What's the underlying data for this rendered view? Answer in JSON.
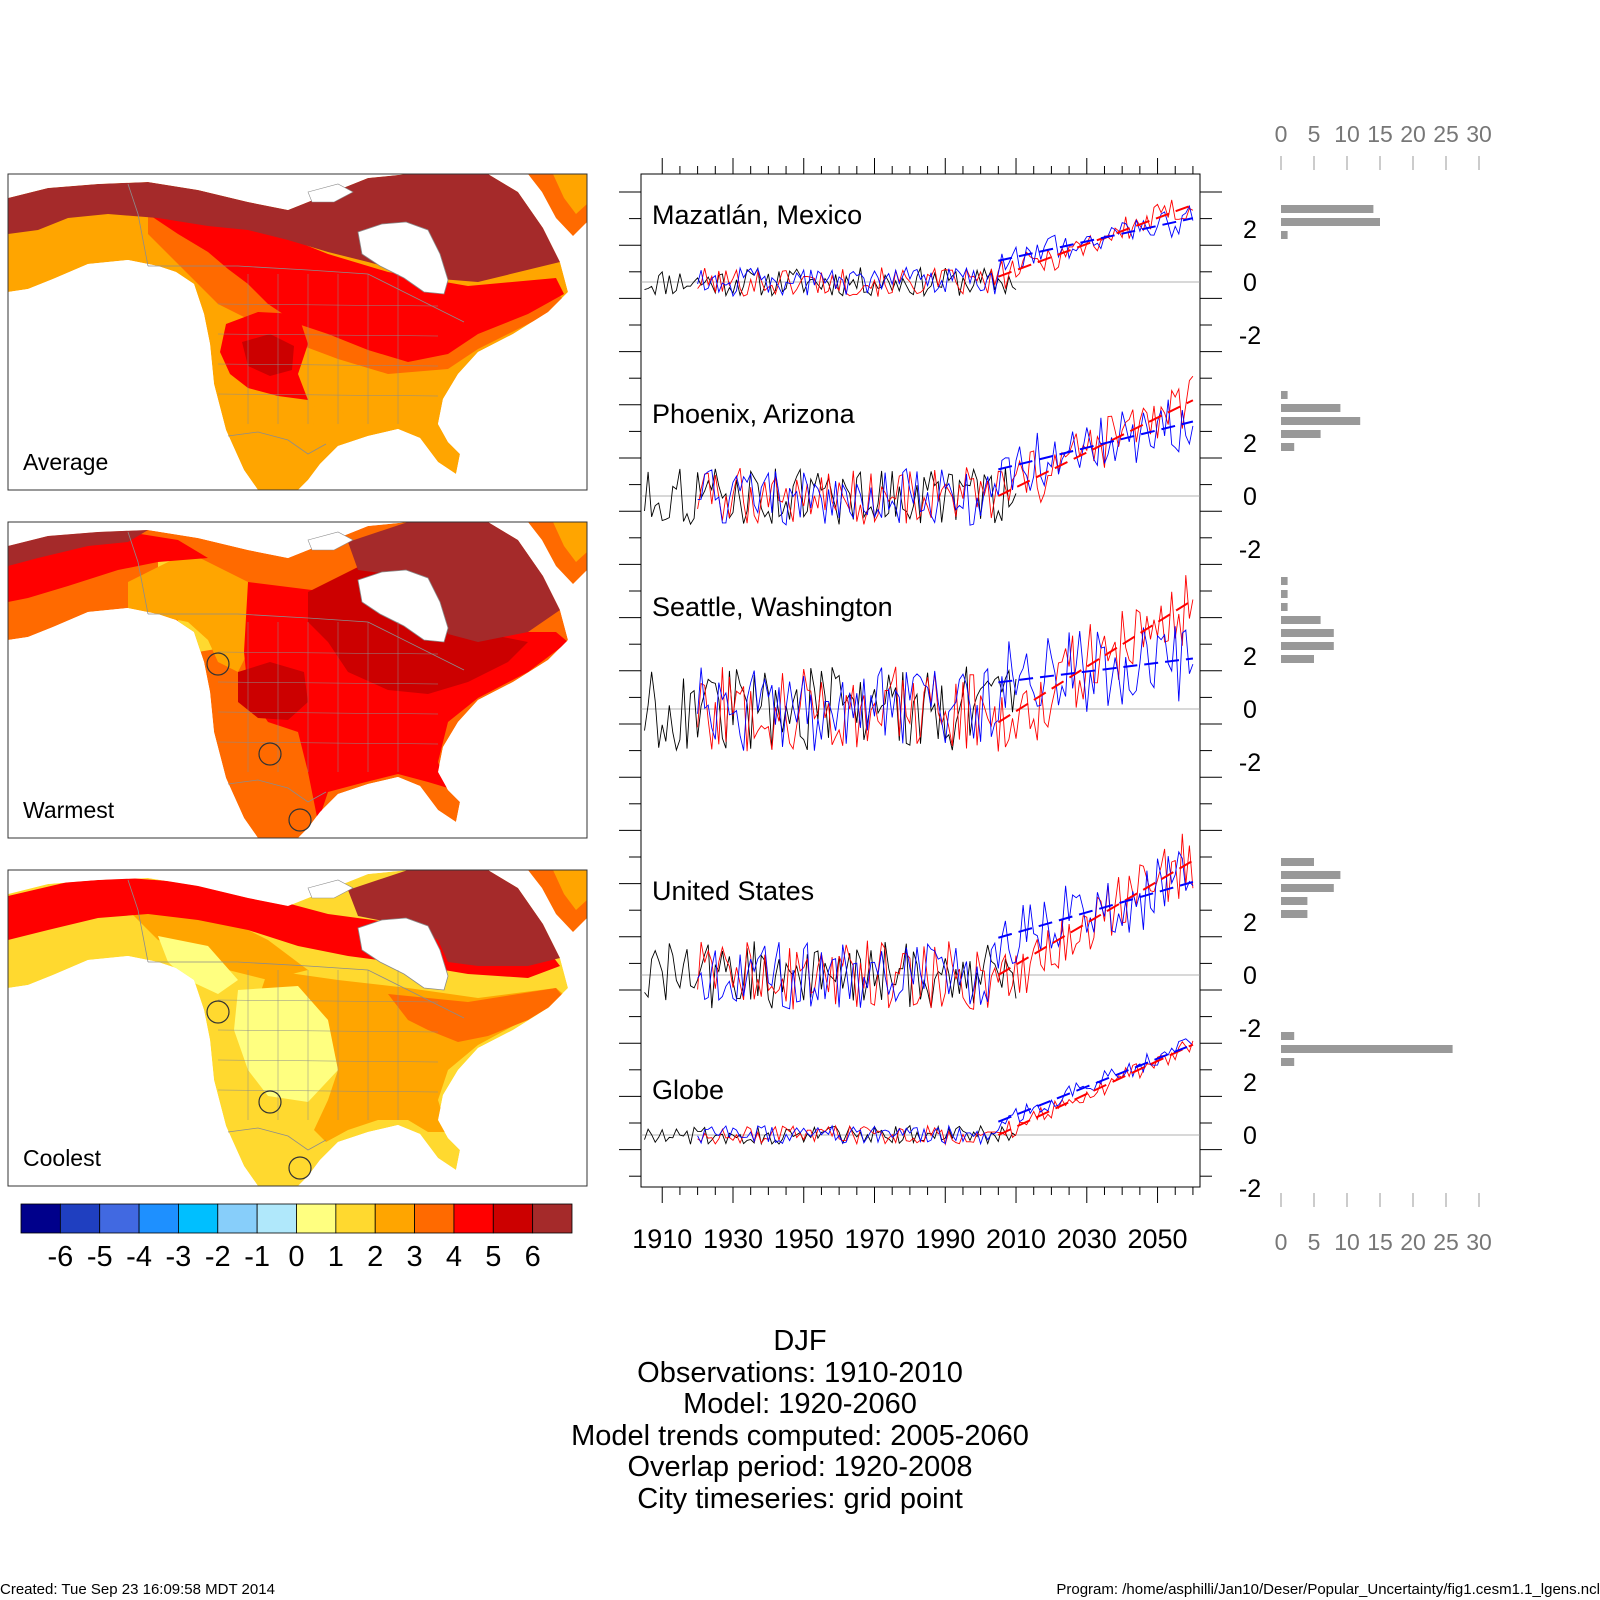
{
  "maps": [
    {
      "label": "Average"
    },
    {
      "label": "Warmest"
    },
    {
      "label": "Coolest"
    }
  ],
  "colorbar": {
    "colors": [
      "#00008b",
      "#1f3fc0",
      "#4169e1",
      "#1e90ff",
      "#00bfff",
      "#87cefa",
      "#b0e8fb",
      "#ffff80",
      "#ffd92f",
      "#ffa500",
      "#ff6a00",
      "#ff0000",
      "#cc0000",
      "#a52a2a"
    ],
    "labels": [
      "-6",
      "-5",
      "-4",
      "-3",
      "-2",
      "-1",
      "0",
      "1",
      "2",
      "3",
      "4",
      "5",
      "6"
    ]
  },
  "map_colors": {
    "ocean": "#ffffff",
    "borders": "#8c8c8c",
    "brown": "#a52a2a",
    "darkred": "#cc0000",
    "red": "#ff0000",
    "darkorange": "#ff6a00",
    "orange": "#ffa500",
    "yellow": "#ffd92f",
    "lightyellow": "#ffff80"
  },
  "caption": {
    "season": "DJF",
    "line1": "Observations: 1910-2010",
    "line2": "Model: 1920-2060",
    "line3": "Model trends computed: 2005-2060",
    "line4": "Overlap period: 1920-2008",
    "line5": "City timeseries: grid point"
  },
  "footer": {
    "created": "Created: Tue Sep 23 16:09:58 MDT 2014",
    "program": "Program: /home/asphilli/Jan10/Deser/Popular_Uncertainty/fig1.cesm1.1_lgens.ncl"
  },
  "chart_data": [
    {
      "type": "line",
      "title": "Mazatlán, Mexico",
      "x_ticks": [
        "1910",
        "1930",
        "1950",
        "1970",
        "1990",
        "2010",
        "2030",
        "2050"
      ],
      "xlim": [
        1904,
        2062
      ],
      "y_ticks": [
        "2",
        "0",
        "-2"
      ],
      "series_colors": {
        "observations": "#000000",
        "warmest": "#ff0000",
        "coolest": "#0000ff"
      },
      "trends": {
        "warmest": {
          "x": [
            2005,
            2060
          ],
          "y": [
            0.2,
            2.9
          ]
        },
        "coolest": {
          "x": [
            2005,
            2060
          ],
          "y": [
            0.8,
            2.4
          ]
        }
      },
      "histogram": {
        "values": [
          14,
          15,
          1
        ]
      }
    },
    {
      "type": "line",
      "title": "Phoenix, Arizona",
      "x_ticks": [
        "1910",
        "1930",
        "1950",
        "1970",
        "1990",
        "2010",
        "2030",
        "2050"
      ],
      "xlim": [
        1904,
        2062
      ],
      "y_ticks": [
        "2",
        "0",
        "-2"
      ],
      "series_colors": {
        "observations": "#000000",
        "warmest": "#ff0000",
        "coolest": "#0000ff"
      },
      "trends": {
        "warmest": {
          "x": [
            2005,
            2060
          ],
          "y": [
            0.0,
            3.6
          ]
        },
        "coolest": {
          "x": [
            2005,
            2060
          ],
          "y": [
            1.0,
            2.8
          ]
        }
      },
      "histogram": {
        "values": [
          1,
          9,
          12,
          6,
          2
        ]
      }
    },
    {
      "type": "line",
      "title": "Seattle, Washington",
      "x_ticks": [
        "1910",
        "1930",
        "1950",
        "1970",
        "1990",
        "2010",
        "2030",
        "2050"
      ],
      "xlim": [
        1904,
        2062
      ],
      "y_ticks": [
        "2",
        "0",
        "-2"
      ],
      "series_colors": {
        "observations": "#000000",
        "warmest": "#ff0000",
        "coolest": "#0000ff"
      },
      "trends": {
        "warmest": {
          "x": [
            2005,
            2060
          ],
          "y": [
            -0.5,
            4.1
          ]
        },
        "coolest": {
          "x": [
            2005,
            2060
          ],
          "y": [
            1.0,
            1.9
          ]
        }
      },
      "histogram": {
        "values": [
          1,
          1,
          1,
          6,
          8,
          8,
          5
        ]
      }
    },
    {
      "type": "line",
      "title": "United States",
      "x_ticks": [
        "1910",
        "1930",
        "1950",
        "1970",
        "1990",
        "2010",
        "2030",
        "2050"
      ],
      "xlim": [
        1904,
        2062
      ],
      "y_ticks": [
        "2",
        "0",
        "-2"
      ],
      "series_colors": {
        "observations": "#000000",
        "warmest": "#ff0000",
        "coolest": "#0000ff"
      },
      "trends": {
        "warmest": {
          "x": [
            2005,
            2060
          ],
          "y": [
            0.0,
            4.3
          ]
        },
        "coolest": {
          "x": [
            2005,
            2060
          ],
          "y": [
            1.4,
            3.5
          ]
        }
      },
      "histogram": {
        "values": [
          5,
          9,
          8,
          4,
          4
        ]
      }
    },
    {
      "type": "line",
      "title": "Globe",
      "x_ticks": [
        "1910",
        "1930",
        "1950",
        "1970",
        "1990",
        "2010",
        "2030",
        "2050"
      ],
      "xlim": [
        1904,
        2062
      ],
      "y_ticks": [
        "2",
        "0",
        "-2"
      ],
      "series_colors": {
        "observations": "#000000",
        "warmest": "#ff0000",
        "coolest": "#0000ff"
      },
      "trends": {
        "warmest": {
          "x": [
            2005,
            2060
          ],
          "y": [
            0.0,
            3.4
          ]
        },
        "coolest": {
          "x": [
            2005,
            2060
          ],
          "y": [
            0.5,
            3.4
          ]
        }
      },
      "histogram": {
        "values": [
          2,
          26,
          2
        ]
      }
    }
  ],
  "histogram_axis": {
    "ticks": [
      "0",
      "5",
      "10",
      "15",
      "20",
      "25",
      "30"
    ],
    "max": 30,
    "bar_color": "#999999"
  }
}
